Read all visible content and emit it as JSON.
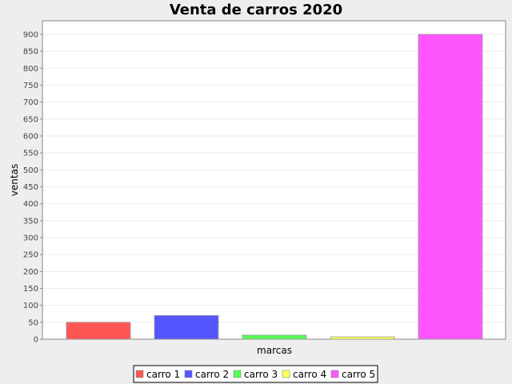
{
  "chart_data": {
    "type": "bar",
    "title": "Venta de carros 2020",
    "xlabel": "marcas",
    "ylabel": "ventas",
    "ylim": [
      0,
      940
    ],
    "ytick_step": 50,
    "grid": true,
    "legend_position": "bottom",
    "background": "#eeeeee",
    "plot_background": "#ffffff",
    "series": [
      {
        "name": "carro 1",
        "value": 50,
        "color": "#ff5555"
      },
      {
        "name": "carro 2",
        "value": 70,
        "color": "#5555ff"
      },
      {
        "name": "carro 3",
        "value": 12,
        "color": "#55ff55"
      },
      {
        "name": "carro 4",
        "value": 7,
        "color": "#ffff55"
      },
      {
        "name": "carro 5",
        "value": 900,
        "color": "#ff55ff"
      }
    ]
  }
}
